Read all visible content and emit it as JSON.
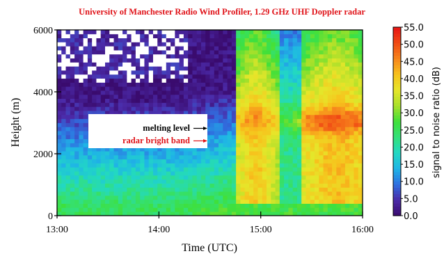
{
  "chart_data": {
    "type": "heatmap",
    "title": "University of Manchester Radio Wind Profiler, 1.29 GHz UHF Doppler radar",
    "xlabel": "Time (UTC)",
    "ylabel": "Height (m)",
    "x_range_hours": [
      13,
      16
    ],
    "x_tick_labels": [
      "13:00",
      "14:00",
      "15:00",
      "16:00"
    ],
    "ylim": [
      0,
      6000
    ],
    "y_tick_values": [
      0,
      2000,
      4000,
      6000
    ],
    "y_tick_labels": [
      "0",
      "2000",
      "4000",
      "6000"
    ],
    "colorbar": {
      "label": "signal to noise ratio (dB)",
      "range": [
        0,
        55
      ],
      "tick_labels": [
        "0.0",
        "5.0",
        "10.0",
        "15.0",
        "20.0",
        "25.0",
        "30.0",
        "35.0",
        "40.0",
        "45.0",
        "50.0",
        "55.0"
      ],
      "colors": [
        "#3a0b6e",
        "#4b2aa8",
        "#2f6fe0",
        "#1fb4e6",
        "#22d8c4",
        "#33e07a",
        "#3fe03a",
        "#a8e02a",
        "#e6e62a",
        "#f7c21c",
        "#f7861c",
        "#f04a14",
        "#e81414"
      ]
    },
    "annotations": [
      {
        "text": "melting level",
        "color": "#000000",
        "height_m": 3300
      },
      {
        "text": "radar bright band",
        "color": "#e0141a",
        "height_m": 3000
      }
    ],
    "colors": {
      "title": "#e0141a",
      "axis": "#000000"
    }
  }
}
